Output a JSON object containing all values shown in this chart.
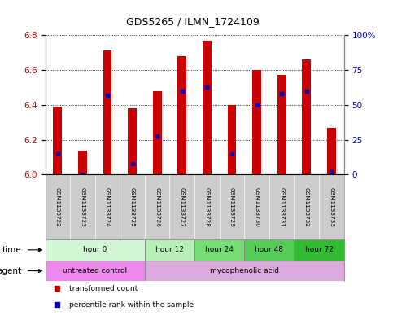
{
  "title": "GDS5265 / ILMN_1724109",
  "samples": [
    "GSM1133722",
    "GSM1133723",
    "GSM1133724",
    "GSM1133725",
    "GSM1133726",
    "GSM1133727",
    "GSM1133728",
    "GSM1133729",
    "GSM1133730",
    "GSM1133731",
    "GSM1133732",
    "GSM1133733"
  ],
  "transformed_counts": [
    6.39,
    6.14,
    6.71,
    6.38,
    6.48,
    6.68,
    6.77,
    6.4,
    6.6,
    6.57,
    6.66,
    6.27
  ],
  "percentile_ranks": [
    15,
    0,
    57,
    8,
    28,
    60,
    63,
    15,
    50,
    58,
    60,
    2
  ],
  "ylim_left": [
    6.0,
    6.8
  ],
  "ylim_right": [
    0,
    100
  ],
  "yticks_left": [
    6.0,
    6.2,
    6.4,
    6.6,
    6.8
  ],
  "yticks_right": [
    0,
    25,
    50,
    75,
    100
  ],
  "ytick_labels_right": [
    "0",
    "25",
    "50",
    "75",
    "100%"
  ],
  "left_tick_color": "#cc0000",
  "right_tick_color": "#0000cc",
  "bar_color": "#cc0000",
  "dot_color": "#0000bb",
  "bar_width": 0.35,
  "base_value": 6.0,
  "time_groups": [
    {
      "label": "hour 0",
      "start": 0,
      "end": 4,
      "color": "#d4f7d4"
    },
    {
      "label": "hour 12",
      "start": 4,
      "end": 6,
      "color": "#b8f0b8"
    },
    {
      "label": "hour 24",
      "start": 6,
      "end": 8,
      "color": "#77dd77"
    },
    {
      "label": "hour 48",
      "start": 8,
      "end": 10,
      "color": "#55cc55"
    },
    {
      "label": "hour 72",
      "start": 10,
      "end": 12,
      "color": "#33bb33"
    }
  ],
  "agent_groups": [
    {
      "label": "untreated control",
      "start": 0,
      "end": 4,
      "color": "#ee88ee"
    },
    {
      "label": "mycophenolic acid",
      "start": 4,
      "end": 12,
      "color": "#ddaadd"
    }
  ],
  "legend_items": [
    {
      "color": "#cc0000",
      "label": "transformed count",
      "marker": "s"
    },
    {
      "color": "#0000bb",
      "label": "percentile rank within the sample",
      "marker": "s"
    }
  ],
  "sample_bg_color": "#cccccc",
  "border_color": "#888888"
}
